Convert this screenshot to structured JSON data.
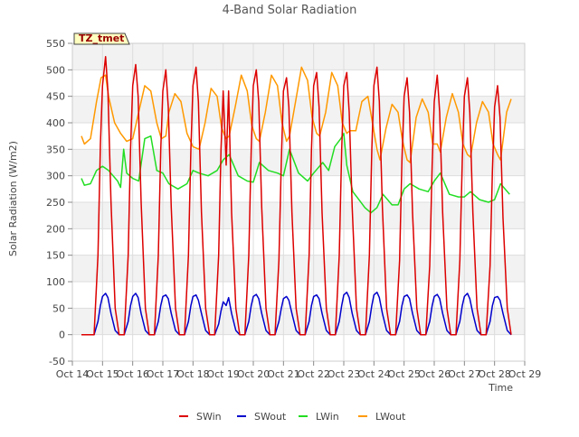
{
  "chart_data": {
    "type": "line",
    "title": "4-Band Solar Radiation",
    "xlabel": "Time",
    "ylabel": "Solar Radiation (W/m2)",
    "annotation": "TZ_tmet",
    "ylim": [
      -50,
      550
    ],
    "yticks": [
      -50,
      0,
      50,
      100,
      150,
      200,
      250,
      300,
      350,
      400,
      450,
      500,
      550
    ],
    "xlim": [
      14,
      29
    ],
    "xticks": [
      14,
      15,
      16,
      17,
      18,
      19,
      20,
      21,
      22,
      23,
      24,
      25,
      26,
      27,
      28,
      29
    ],
    "xtick_labels": [
      "Oct 14",
      "Oct 15",
      "Oct 16",
      "Oct 17",
      "Oct 18",
      "Oct 19",
      "Oct 20",
      "Oct 21",
      "Oct 22",
      "Oct 23",
      "Oct 24",
      "Oct 25",
      "Oct 26",
      "Oct 27",
      "Oct 28",
      "Oct 29"
    ],
    "grid": true,
    "legend_position": "bottom-center",
    "series": [
      {
        "name": "SWin",
        "color": "#dd0000",
        "x": [
          14.3,
          14.72,
          14.85,
          14.93,
          15.0,
          15.1,
          15.18,
          15.28,
          15.42,
          15.55,
          15.72,
          15.85,
          15.93,
          16.0,
          16.1,
          16.18,
          16.28,
          16.42,
          16.55,
          16.72,
          16.85,
          16.93,
          17.0,
          17.1,
          17.18,
          17.28,
          17.42,
          17.55,
          17.72,
          17.85,
          17.93,
          18.0,
          18.1,
          18.18,
          18.28,
          18.42,
          18.55,
          18.72,
          18.85,
          18.93,
          19.0,
          19.1,
          19.18,
          19.28,
          19.42,
          19.55,
          19.72,
          19.85,
          19.93,
          20.0,
          20.1,
          20.18,
          20.28,
          20.42,
          20.55,
          20.72,
          20.85,
          20.93,
          21.0,
          21.1,
          21.18,
          21.28,
          21.42,
          21.55,
          21.72,
          21.85,
          21.93,
          22.0,
          22.1,
          22.18,
          22.28,
          22.42,
          22.55,
          22.72,
          22.85,
          22.93,
          23.0,
          23.1,
          23.18,
          23.28,
          23.42,
          23.55,
          23.72,
          23.85,
          23.93,
          24.0,
          24.1,
          24.18,
          24.28,
          24.42,
          24.55,
          24.72,
          24.85,
          24.93,
          25.0,
          25.1,
          25.18,
          25.28,
          25.42,
          25.55,
          25.72,
          25.85,
          25.93,
          26.0,
          26.1,
          26.18,
          26.28,
          26.42,
          26.55,
          26.72,
          26.85,
          26.93,
          27.0,
          27.1,
          27.18,
          27.28,
          27.42,
          27.55,
          27.72,
          27.85,
          27.93,
          28.0,
          28.1,
          28.18,
          28.28,
          28.42,
          28.55
        ],
        "y": [
          0,
          0,
          150,
          360,
          470,
          525,
          460,
          250,
          50,
          0,
          0,
          150,
          350,
          470,
          510,
          450,
          250,
          50,
          0,
          0,
          150,
          350,
          460,
          500,
          430,
          240,
          50,
          0,
          0,
          150,
          350,
          470,
          505,
          440,
          230,
          50,
          0,
          0,
          150,
          350,
          460,
          320,
          460,
          230,
          50,
          0,
          0,
          150,
          350,
          470,
          500,
          440,
          240,
          50,
          0,
          0,
          140,
          330,
          460,
          485,
          430,
          230,
          50,
          0,
          0,
          150,
          350,
          470,
          495,
          430,
          230,
          50,
          0,
          0,
          150,
          350,
          470,
          495,
          420,
          240,
          50,
          0,
          0,
          150,
          350,
          470,
          505,
          440,
          240,
          50,
          0,
          0,
          140,
          330,
          450,
          485,
          420,
          230,
          50,
          0,
          0,
          130,
          320,
          440,
          490,
          420,
          230,
          50,
          0,
          0,
          140,
          330,
          450,
          485,
          420,
          230,
          50,
          0,
          0,
          130,
          310,
          430,
          470,
          410,
          220,
          50,
          0
        ]
      },
      {
        "name": "SWout",
        "color": "#0000cc",
        "x": [
          14.3,
          14.72,
          14.85,
          14.93,
          15.0,
          15.1,
          15.18,
          15.28,
          15.42,
          15.55,
          15.72,
          15.85,
          15.93,
          16.0,
          16.1,
          16.18,
          16.28,
          16.42,
          16.55,
          16.72,
          16.85,
          16.93,
          17.0,
          17.1,
          17.18,
          17.28,
          17.42,
          17.55,
          17.72,
          17.85,
          17.93,
          18.0,
          18.1,
          18.18,
          18.28,
          18.42,
          18.55,
          18.72,
          18.85,
          18.93,
          19.0,
          19.1,
          19.18,
          19.28,
          19.42,
          19.55,
          19.72,
          19.85,
          19.93,
          20.0,
          20.1,
          20.18,
          20.28,
          20.42,
          20.55,
          20.72,
          20.85,
          20.93,
          21.0,
          21.1,
          21.18,
          21.28,
          21.42,
          21.55,
          21.72,
          21.85,
          21.93,
          22.0,
          22.1,
          22.18,
          22.28,
          22.42,
          22.55,
          22.72,
          22.85,
          22.93,
          23.0,
          23.1,
          23.18,
          23.28,
          23.42,
          23.55,
          23.72,
          23.85,
          23.93,
          24.0,
          24.1,
          24.18,
          24.28,
          24.42,
          24.55,
          24.72,
          24.85,
          24.93,
          25.0,
          25.1,
          25.18,
          25.28,
          25.42,
          25.55,
          25.72,
          25.85,
          25.93,
          26.0,
          26.1,
          26.18,
          26.28,
          26.42,
          26.55,
          26.72,
          26.85,
          26.93,
          27.0,
          27.1,
          27.18,
          27.28,
          27.42,
          27.55,
          27.72,
          27.85,
          27.93,
          28.0,
          28.1,
          28.18,
          28.28,
          28.42,
          28.55
        ],
        "y": [
          0,
          0,
          25,
          55,
          72,
          78,
          70,
          40,
          8,
          0,
          0,
          25,
          55,
          72,
          78,
          70,
          40,
          8,
          0,
          0,
          25,
          55,
          72,
          75,
          68,
          40,
          8,
          0,
          0,
          25,
          55,
          72,
          75,
          65,
          40,
          8,
          0,
          0,
          20,
          45,
          62,
          55,
          70,
          40,
          8,
          0,
          0,
          25,
          55,
          72,
          76,
          68,
          40,
          8,
          0,
          0,
          25,
          50,
          68,
          72,
          65,
          40,
          8,
          0,
          0,
          25,
          55,
          72,
          75,
          68,
          40,
          8,
          0,
          0,
          25,
          55,
          75,
          80,
          70,
          40,
          8,
          0,
          0,
          25,
          55,
          75,
          80,
          70,
          40,
          8,
          0,
          0,
          25,
          55,
          72,
          75,
          68,
          40,
          8,
          0,
          0,
          25,
          55,
          72,
          76,
          68,
          40,
          8,
          0,
          0,
          25,
          55,
          72,
          78,
          68,
          40,
          8,
          0,
          0,
          25,
          55,
          70,
          72,
          65,
          40,
          8,
          0
        ]
      },
      {
        "name": "LWin",
        "color": "#22dd22",
        "x": [
          14.3,
          14.4,
          14.6,
          14.8,
          15.0,
          15.2,
          15.5,
          15.6,
          15.7,
          15.8,
          16.0,
          16.2,
          16.4,
          16.6,
          16.8,
          17.0,
          17.2,
          17.5,
          17.8,
          18.0,
          18.2,
          18.5,
          18.8,
          19.0,
          19.2,
          19.5,
          19.8,
          20.0,
          20.2,
          20.5,
          20.8,
          21.0,
          21.2,
          21.5,
          21.8,
          22.0,
          22.3,
          22.5,
          22.7,
          22.9,
          23.0,
          23.1,
          23.3,
          23.5,
          23.7,
          23.9,
          24.1,
          24.3,
          24.6,
          24.8,
          25.0,
          25.2,
          25.5,
          25.8,
          26.0,
          26.2,
          26.5,
          26.8,
          27.0,
          27.2,
          27.5,
          27.8,
          28.0,
          28.2,
          28.5
        ],
        "y": [
          295,
          282,
          285,
          310,
          318,
          310,
          290,
          278,
          350,
          305,
          295,
          290,
          370,
          375,
          310,
          305,
          285,
          275,
          285,
          310,
          305,
          300,
          310,
          330,
          340,
          300,
          290,
          288,
          325,
          310,
          305,
          300,
          350,
          305,
          290,
          305,
          325,
          310,
          355,
          370,
          380,
          320,
          270,
          255,
          240,
          230,
          240,
          265,
          245,
          245,
          275,
          285,
          275,
          270,
          290,
          305,
          265,
          260,
          260,
          270,
          255,
          250,
          255,
          285,
          265
        ]
      },
      {
        "name": "LWout",
        "color": "#ff9900",
        "x": [
          14.3,
          14.4,
          14.6,
          14.8,
          14.95,
          15.1,
          15.2,
          15.4,
          15.6,
          15.8,
          16.0,
          16.2,
          16.4,
          16.6,
          16.8,
          16.95,
          17.1,
          17.2,
          17.4,
          17.6,
          17.8,
          18.0,
          18.2,
          18.4,
          18.6,
          18.8,
          18.95,
          19.1,
          19.2,
          19.4,
          19.6,
          19.8,
          19.95,
          20.1,
          20.2,
          20.4,
          20.6,
          20.8,
          20.95,
          21.1,
          21.2,
          21.4,
          21.6,
          21.8,
          21.95,
          22.1,
          22.2,
          22.4,
          22.6,
          22.8,
          22.95,
          23.1,
          23.2,
          23.4,
          23.6,
          23.8,
          23.95,
          24.1,
          24.2,
          24.4,
          24.6,
          24.8,
          24.95,
          25.1,
          25.2,
          25.4,
          25.6,
          25.8,
          25.95,
          26.1,
          26.2,
          26.4,
          26.6,
          26.8,
          26.95,
          27.1,
          27.2,
          27.4,
          27.6,
          27.8,
          27.95,
          28.1,
          28.2,
          28.4,
          28.55
        ],
        "y": [
          375,
          360,
          370,
          440,
          485,
          490,
          450,
          400,
          380,
          365,
          370,
          420,
          470,
          460,
          400,
          370,
          375,
          420,
          455,
          440,
          380,
          355,
          350,
          400,
          465,
          450,
          390,
          370,
          375,
          430,
          490,
          460,
          395,
          370,
          365,
          420,
          490,
          470,
          400,
          365,
          375,
          440,
          505,
          480,
          410,
          380,
          375,
          420,
          495,
          470,
          400,
          380,
          385,
          385,
          440,
          450,
          400,
          350,
          330,
          390,
          435,
          420,
          365,
          330,
          325,
          410,
          445,
          420,
          360,
          360,
          345,
          410,
          455,
          420,
          360,
          340,
          335,
          400,
          440,
          420,
          360,
          340,
          330,
          420,
          445
        ]
      }
    ]
  }
}
